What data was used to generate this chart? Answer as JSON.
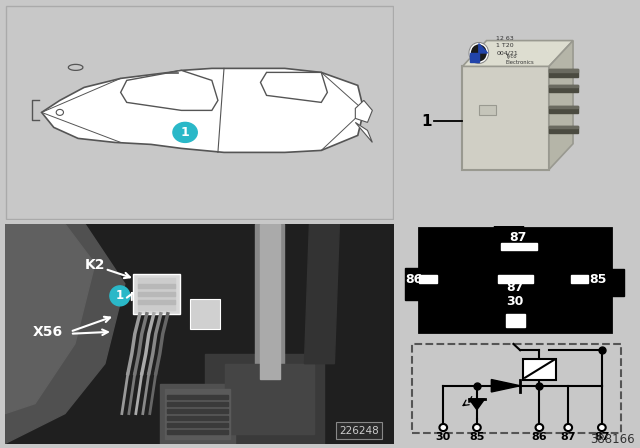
{
  "bg_color": "#c8c8c8",
  "white": "#ffffff",
  "black": "#000000",
  "teal": "#2ab8c8",
  "part_number": "388166",
  "photo_number": "226248",
  "label_k2": "K2",
  "label_x56": "X56",
  "pin_labels_schematic": [
    "30",
    "85",
    "86",
    "87",
    "87"
  ]
}
